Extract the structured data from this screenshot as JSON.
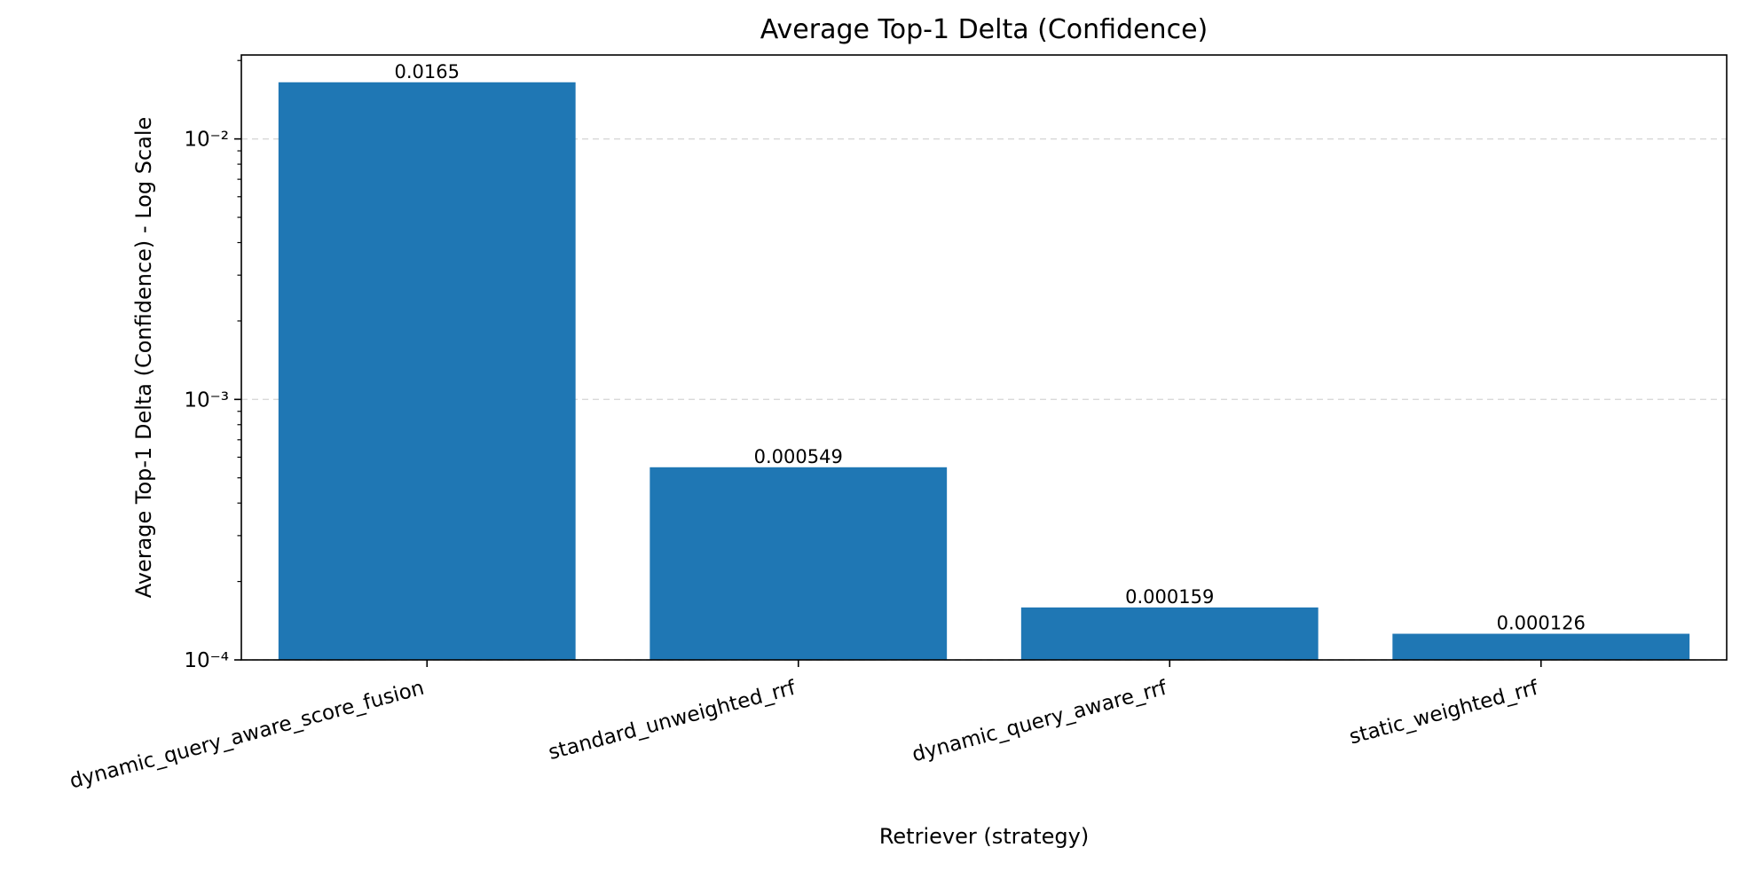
{
  "chart_data": {
    "type": "bar",
    "title": "Average Top-1 Delta (Confidence)",
    "xlabel": "Retriever (strategy)",
    "ylabel": "Average Top-1 Delta (Confidence) - Log Scale",
    "yscale": "log",
    "ylim": [
      0.0001,
      0.021
    ],
    "yticks": [
      {
        "value": 0.0001,
        "label": "10⁻⁴"
      },
      {
        "value": 0.001,
        "label": "10⁻³"
      },
      {
        "value": 0.01,
        "label": "10⁻²"
      }
    ],
    "grid": "y-dashed",
    "categories": [
      "dynamic_query_aware_score_fusion",
      "standard_unweighted_rrf",
      "dynamic_query_aware_rrf",
      "static_weighted_rrf"
    ],
    "values": [
      0.0165,
      0.000549,
      0.000159,
      0.000126
    ],
    "data_labels": [
      "0.0165",
      "0.000549",
      "0.000159",
      "0.000126"
    ],
    "bar_color": "#1f77b4",
    "grid_color": "#d9d9d9"
  }
}
